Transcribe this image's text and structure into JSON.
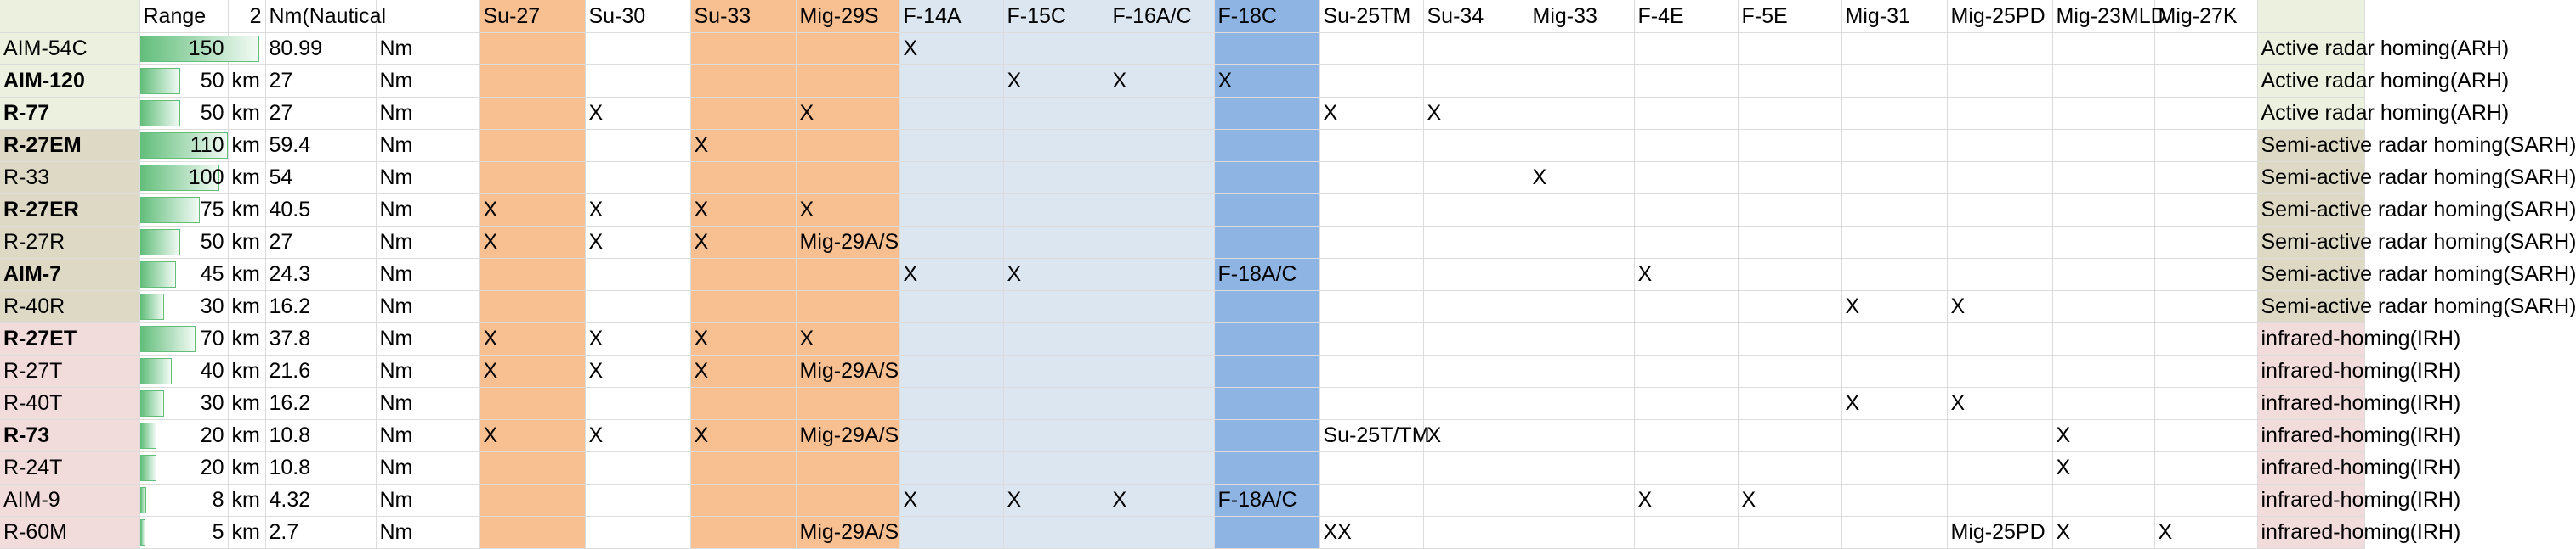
{
  "colors": {
    "ARH": "#ebf1de",
    "SARH": "#ddd9c4",
    "IRH": "#f2dcdb",
    "su_orange": "#f8bf91",
    "nato_blue": "#dce6f1",
    "f18_blue": "#8eb4e3",
    "bar": "#63be7b"
  },
  "header": {
    "missile": "",
    "range": "Range",
    "unit_km": "2",
    "nm": "Nm(Nautical",
    "nm_unit": "",
    "aircraft": [
      "Su-27",
      "Su-30",
      "Su-33",
      "Mig-29S",
      "F-14A",
      "F-15C",
      "F-16A/C",
      "F-18C",
      "Su-25TM",
      "Su-34",
      "Mig-33",
      "F-4E",
      "F-5E",
      "Mig-31",
      "Mig-25PD",
      "Mig-23MLD",
      "Mig-27K"
    ],
    "guidance": ""
  },
  "rows": [
    {
      "missile": "AIM-54C",
      "bold": false,
      "range": 150,
      "km": "km",
      "nm": "80.99",
      "nm_unit": "Nm",
      "aircraft": [
        "",
        "",
        "",
        "",
        "X",
        "",
        "",
        "",
        "",
        "",
        "",
        "",
        "",
        "",
        "",
        "",
        ""
      ],
      "guidance": "Active radar homing(ARH)",
      "type": "ARH"
    },
    {
      "missile": "AIM-120",
      "bold": true,
      "range": 50,
      "km": "km",
      "nm": "27",
      "nm_unit": "Nm",
      "aircraft": [
        "",
        "",
        "",
        "",
        "",
        "X",
        "X",
        "X",
        "",
        "",
        "",
        "",
        "",
        "",
        "",
        "",
        ""
      ],
      "guidance": "Active radar homing(ARH)",
      "type": "ARH"
    },
    {
      "missile": "R-77",
      "bold": true,
      "range": 50,
      "km": "km",
      "nm": "27",
      "nm_unit": "Nm",
      "aircraft": [
        "",
        "X",
        "",
        "X",
        "",
        "",
        "",
        "",
        "X",
        "X",
        "",
        "",
        "",
        "",
        "",
        "",
        ""
      ],
      "guidance": "Active radar homing(ARH)",
      "type": "ARH"
    },
    {
      "missile": "R-27EM",
      "bold": true,
      "range": 110,
      "km": "km",
      "nm": "59.4",
      "nm_unit": "Nm",
      "aircraft": [
        "",
        "",
        "X",
        "",
        "",
        "",
        "",
        "",
        "",
        "",
        "",
        "",
        "",
        "",
        "",
        "",
        ""
      ],
      "guidance": "Semi-active radar homing(SARH)",
      "type": "SARH"
    },
    {
      "missile": "R-33",
      "bold": false,
      "range": 100,
      "km": "km",
      "nm": "54",
      "nm_unit": "Nm",
      "aircraft": [
        "",
        "",
        "",
        "",
        "",
        "",
        "",
        "",
        "",
        "",
        "X",
        "",
        "",
        "",
        "",
        "",
        ""
      ],
      "guidance": "Semi-active radar homing(SARH)",
      "type": "SARH"
    },
    {
      "missile": "R-27ER",
      "bold": true,
      "range": 75,
      "km": "km",
      "nm": "40.5",
      "nm_unit": "Nm",
      "aircraft": [
        "X",
        "X",
        "X",
        "X",
        "",
        "",
        "",
        "",
        "",
        "",
        "",
        "",
        "",
        "",
        "",
        "",
        ""
      ],
      "guidance": "Semi-active radar homing(SARH)",
      "type": "SARH"
    },
    {
      "missile": "R-27R",
      "bold": false,
      "range": 50,
      "km": "km",
      "nm": "27",
      "nm_unit": "Nm",
      "aircraft": [
        "X",
        "X",
        "X",
        "Mig-29A/S",
        "",
        "",
        "",
        "",
        "",
        "",
        "",
        "",
        "",
        "",
        "",
        "",
        ""
      ],
      "guidance": "Semi-active radar homing(SARH)",
      "type": "SARH"
    },
    {
      "missile": "AIM-7",
      "bold": true,
      "range": 45,
      "km": "km",
      "nm": "24.3",
      "nm_unit": "Nm",
      "aircraft": [
        "",
        "",
        "",
        "",
        "X",
        "X",
        "",
        "F-18A/C",
        "",
        "",
        "",
        "X",
        "",
        "",
        "",
        "",
        ""
      ],
      "guidance": "Semi-active radar homing(SARH)",
      "type": "SARH"
    },
    {
      "missile": "R-40R",
      "bold": false,
      "range": 30,
      "km": "km",
      "nm": "16.2",
      "nm_unit": "Nm",
      "aircraft": [
        "",
        "",
        "",
        "",
        "",
        "",
        "",
        "",
        "",
        "",
        "",
        "",
        "",
        "X",
        "X",
        "",
        ""
      ],
      "guidance": "Semi-active radar homing(SARH)",
      "type": "SARH"
    },
    {
      "missile": "R-27ET",
      "bold": true,
      "range": 70,
      "km": "km",
      "nm": "37.8",
      "nm_unit": "Nm",
      "aircraft": [
        "X",
        "X",
        "X",
        "X",
        "",
        "",
        "",
        "",
        "",
        "",
        "",
        "",
        "",
        "",
        "",
        "",
        ""
      ],
      "guidance": "infrared-homing(IRH)",
      "type": "IRH"
    },
    {
      "missile": "R-27T",
      "bold": false,
      "range": 40,
      "km": "km",
      "nm": "21.6",
      "nm_unit": "Nm",
      "aircraft": [
        "X",
        "X",
        "X",
        "Mig-29A/S",
        "",
        "",
        "",
        "",
        "",
        "",
        "",
        "",
        "",
        "",
        "",
        "",
        ""
      ],
      "guidance": "infrared-homing(IRH)",
      "type": "IRH"
    },
    {
      "missile": "R-40T",
      "bold": false,
      "range": 30,
      "km": "km",
      "nm": "16.2",
      "nm_unit": "Nm",
      "aircraft": [
        "",
        "",
        "",
        "",
        "",
        "",
        "",
        "",
        "",
        "",
        "",
        "",
        "",
        "X",
        "X",
        "",
        ""
      ],
      "guidance": "infrared-homing(IRH)",
      "type": "IRH"
    },
    {
      "missile": "R-73",
      "bold": true,
      "range": 20,
      "km": "km",
      "nm": "10.8",
      "nm_unit": "Nm",
      "aircraft": [
        "X",
        "X",
        "X",
        "Mig-29A/S",
        "",
        "",
        "",
        "",
        "Su-25T/TM",
        "X",
        "",
        "",
        "",
        "",
        "",
        "X",
        ""
      ],
      "guidance": "infrared-homing(IRH)",
      "type": "IRH"
    },
    {
      "missile": "R-24T",
      "bold": false,
      "range": 20,
      "km": "km",
      "nm": "10.8",
      "nm_unit": "Nm",
      "aircraft": [
        "",
        "",
        "",
        "",
        "",
        "",
        "",
        "",
        "",
        "",
        "",
        "",
        "",
        "",
        "",
        "X",
        ""
      ],
      "guidance": "infrared-homing(IRH)",
      "type": "IRH"
    },
    {
      "missile": "AIM-9",
      "bold": false,
      "range": 8,
      "km": "km",
      "nm": "4.32",
      "nm_unit": "Nm",
      "aircraft": [
        "",
        "",
        "",
        "",
        "X",
        "X",
        "X",
        "F-18A/C",
        "",
        "",
        "",
        "X",
        "X",
        "",
        "",
        "",
        ""
      ],
      "guidance": "infrared-homing(IRH)",
      "type": "IRH"
    },
    {
      "missile": "R-60M",
      "bold": false,
      "range": 5,
      "km": "km",
      "nm": "2.7",
      "nm_unit": "Nm",
      "aircraft": [
        "",
        "",
        "",
        "Mig-29A/S",
        "",
        "",
        "",
        "",
        "XX",
        "",
        "",
        "",
        "",
        "",
        "Mig-25PD",
        "X",
        "X"
      ],
      "guidance": "infrared-homing(IRH)",
      "type": "IRH"
    }
  ]
}
